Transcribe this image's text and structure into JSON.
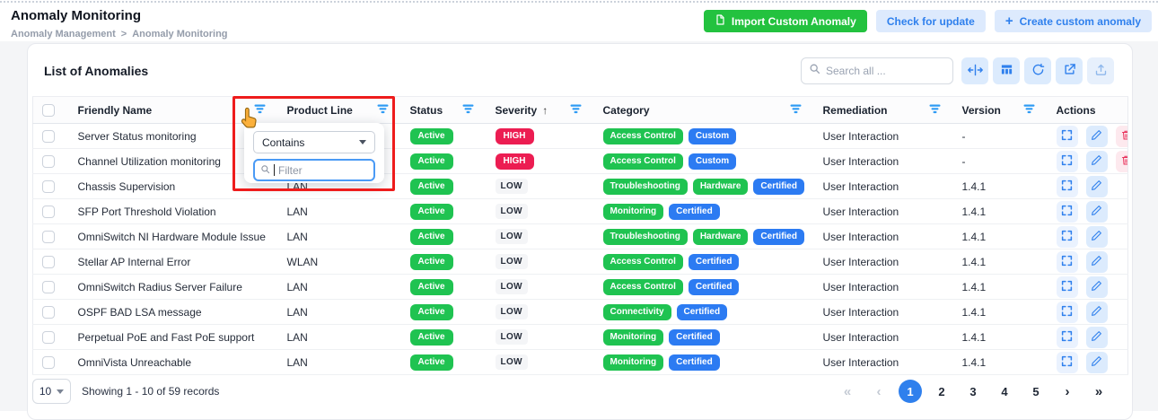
{
  "page": {
    "title": "Anomaly Monitoring",
    "breadcrumb_parent": "Anomaly Management",
    "breadcrumb_separator": ">",
    "breadcrumb_current": "Anomaly Monitoring",
    "buttons": {
      "import": "Import Custom Anomaly",
      "check_update": "Check for update",
      "create": "Create custom anomaly",
      "create_plus_glyph": "+"
    }
  },
  "card": {
    "title": "List of Anomalies",
    "search_placeholder": "Search all ...",
    "toolbar_icons": [
      "fit-columns-icon",
      "table-columns-icon",
      "refresh-icon",
      "open-external-icon",
      "export-icon"
    ]
  },
  "filter_popup": {
    "operator": "Contains",
    "filter_placeholder": "Filter"
  },
  "table": {
    "sort_ascending_glyph": "↑",
    "columns": [
      {
        "label": "",
        "kind": "checkbox",
        "filter": false
      },
      {
        "label": "Friendly Name",
        "kind": "text",
        "filter": true
      },
      {
        "label": "Product Line",
        "kind": "text",
        "filter": true
      },
      {
        "label": "Status",
        "kind": "text",
        "filter": true
      },
      {
        "label": "Severity",
        "kind": "text",
        "filter": true,
        "sort": "asc"
      },
      {
        "label": "Category",
        "kind": "text",
        "filter": true
      },
      {
        "label": "Remediation",
        "kind": "text",
        "filter": true
      },
      {
        "label": "Version",
        "kind": "text",
        "filter": true
      },
      {
        "label": "Actions",
        "kind": "text",
        "filter": false
      }
    ],
    "rows": [
      {
        "name": "Server Status monitoring",
        "product_line": "",
        "status": "Active",
        "severity": "HIGH",
        "categories": [
          {
            "label": "Access Control",
            "type": "green"
          },
          {
            "label": "Custom",
            "type": "blue"
          }
        ],
        "remediation": "User Interaction",
        "version": "-",
        "actions": [
          "expand",
          "edit",
          "delete"
        ]
      },
      {
        "name": "Channel Utilization monitoring",
        "product_line": "",
        "status": "Active",
        "severity": "HIGH",
        "categories": [
          {
            "label": "Access Control",
            "type": "green"
          },
          {
            "label": "Custom",
            "type": "blue"
          }
        ],
        "remediation": "User Interaction",
        "version": "-",
        "actions": [
          "expand",
          "edit",
          "delete"
        ]
      },
      {
        "name": "Chassis Supervision",
        "product_line": "LAN",
        "status": "Active",
        "severity": "LOW",
        "categories": [
          {
            "label": "Troubleshooting",
            "type": "green"
          },
          {
            "label": "Hardware",
            "type": "green"
          },
          {
            "label": "Certified",
            "type": "blue"
          }
        ],
        "remediation": "User Interaction",
        "version": "1.4.1",
        "actions": [
          "expand",
          "edit"
        ]
      },
      {
        "name": "SFP Port Threshold Violation",
        "product_line": "LAN",
        "status": "Active",
        "severity": "LOW",
        "categories": [
          {
            "label": "Monitoring",
            "type": "green"
          },
          {
            "label": "Certified",
            "type": "blue"
          }
        ],
        "remediation": "User Interaction",
        "version": "1.4.1",
        "actions": [
          "expand",
          "edit"
        ]
      },
      {
        "name": "OmniSwitch NI Hardware Module Issue",
        "product_line": "LAN",
        "status": "Active",
        "severity": "LOW",
        "categories": [
          {
            "label": "Troubleshooting",
            "type": "green"
          },
          {
            "label": "Hardware",
            "type": "green"
          },
          {
            "label": "Certified",
            "type": "blue"
          }
        ],
        "remediation": "User Interaction",
        "version": "1.4.1",
        "actions": [
          "expand",
          "edit"
        ]
      },
      {
        "name": "Stellar AP Internal Error",
        "product_line": "WLAN",
        "status": "Active",
        "severity": "LOW",
        "categories": [
          {
            "label": "Access Control",
            "type": "green"
          },
          {
            "label": "Certified",
            "type": "blue"
          }
        ],
        "remediation": "User Interaction",
        "version": "1.4.1",
        "actions": [
          "expand",
          "edit"
        ]
      },
      {
        "name": "OmniSwitch Radius Server Failure",
        "product_line": "LAN",
        "status": "Active",
        "severity": "LOW",
        "categories": [
          {
            "label": "Access Control",
            "type": "green"
          },
          {
            "label": "Certified",
            "type": "blue"
          }
        ],
        "remediation": "User Interaction",
        "version": "1.4.1",
        "actions": [
          "expand",
          "edit"
        ]
      },
      {
        "name": "OSPF BAD LSA message",
        "product_line": "LAN",
        "status": "Active",
        "severity": "LOW",
        "categories": [
          {
            "label": "Connectivity",
            "type": "green"
          },
          {
            "label": "Certified",
            "type": "blue"
          }
        ],
        "remediation": "User Interaction",
        "version": "1.4.1",
        "actions": [
          "expand",
          "edit"
        ]
      },
      {
        "name": "Perpetual PoE and Fast PoE support",
        "product_line": "LAN",
        "status": "Active",
        "severity": "LOW",
        "categories": [
          {
            "label": "Monitoring",
            "type": "green"
          },
          {
            "label": "Certified",
            "type": "blue"
          }
        ],
        "remediation": "User Interaction",
        "version": "1.4.1",
        "actions": [
          "expand",
          "edit"
        ]
      },
      {
        "name": "OmniVista Unreachable",
        "product_line": "LAN",
        "status": "Active",
        "severity": "LOW",
        "categories": [
          {
            "label": "Monitoring",
            "type": "green"
          },
          {
            "label": "Certified",
            "type": "blue"
          }
        ],
        "remediation": "User Interaction",
        "version": "1.4.1",
        "actions": [
          "expand",
          "edit"
        ]
      }
    ]
  },
  "pagination": {
    "page_size": "10",
    "summary": "Showing 1 - 10 of 59 records",
    "pages": [
      "1",
      "2",
      "3",
      "4",
      "5"
    ],
    "active_page": "1",
    "first_glyph": "«",
    "prev_glyph": "‹",
    "next_glyph": "›",
    "last_glyph": "»"
  },
  "colors": {
    "green_badge": "#1fc351",
    "blue_badge": "#2c7bf2",
    "red_badge": "#ec1d52",
    "accent_blue": "#2f80ed",
    "import_button_green": "#23c23f",
    "annotation_red": "#ee1c1c"
  }
}
